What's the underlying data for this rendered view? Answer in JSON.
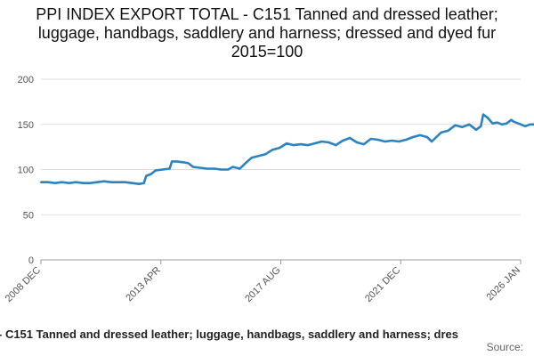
{
  "chart_data": {
    "type": "line",
    "title": "PPI INDEX EXPORT TOTAL - C151 Tanned and dressed leather; luggage, handbags, saddlery and harness; dressed and dyed fur 2015=100",
    "xlabel": "",
    "ylabel": "",
    "ylim": [
      0,
      200
    ],
    "yticks": [
      "0",
      "50",
      "100",
      "150",
      "200"
    ],
    "x_tick_labels": [
      "2008 DEC",
      "2013 APR",
      "2017 AUG",
      "2021 DEC",
      "2026 JAN"
    ],
    "x_range": [
      "2008-12",
      "2026-01"
    ],
    "grid": "horizontal",
    "series": [
      {
        "name": "PPI INDEX EXPORT TOTAL - C151 Tanned and dressed leather; luggage, handbags, saddlery and harness; dressed and dyed fur 2015=100",
        "color": "#2b84c0",
        "points": [
          [
            "2008-12",
            86
          ],
          [
            "2009-03",
            86
          ],
          [
            "2009-06",
            85
          ],
          [
            "2009-09",
            86
          ],
          [
            "2009-12",
            85
          ],
          [
            "2010-03",
            86
          ],
          [
            "2010-06",
            85
          ],
          [
            "2010-09",
            85
          ],
          [
            "2010-12",
            86
          ],
          [
            "2011-03",
            87
          ],
          [
            "2011-06",
            86
          ],
          [
            "2011-09",
            86
          ],
          [
            "2011-12",
            86
          ],
          [
            "2012-03",
            85
          ],
          [
            "2012-06",
            84
          ],
          [
            "2012-08",
            85
          ],
          [
            "2012-09",
            93
          ],
          [
            "2012-11",
            95
          ],
          [
            "2013-01",
            99
          ],
          [
            "2013-04",
            100
          ],
          [
            "2013-07",
            101
          ],
          [
            "2013-08",
            109
          ],
          [
            "2013-10",
            109
          ],
          [
            "2014-01",
            108
          ],
          [
            "2014-03",
            107
          ],
          [
            "2014-05",
            103
          ],
          [
            "2014-08",
            102
          ],
          [
            "2014-11",
            101
          ],
          [
            "2015-02",
            101
          ],
          [
            "2015-05",
            100
          ],
          [
            "2015-08",
            100
          ],
          [
            "2015-10",
            103
          ],
          [
            "2016-01",
            101
          ],
          [
            "2016-03",
            106
          ],
          [
            "2016-06",
            113
          ],
          [
            "2016-09",
            115
          ],
          [
            "2016-12",
            117
          ],
          [
            "2017-03",
            122
          ],
          [
            "2017-06",
            124
          ],
          [
            "2017-09",
            129
          ],
          [
            "2017-12",
            127
          ],
          [
            "2018-03",
            128
          ],
          [
            "2018-06",
            127
          ],
          [
            "2018-09",
            129
          ],
          [
            "2018-12",
            131
          ],
          [
            "2019-03",
            130
          ],
          [
            "2019-06",
            127
          ],
          [
            "2019-09",
            132
          ],
          [
            "2019-12",
            135
          ],
          [
            "2020-03",
            130
          ],
          [
            "2020-06",
            128
          ],
          [
            "2020-09",
            134
          ],
          [
            "2020-12",
            133
          ],
          [
            "2021-03",
            131
          ],
          [
            "2021-06",
            132
          ],
          [
            "2021-09",
            131
          ],
          [
            "2021-12",
            133
          ],
          [
            "2022-03",
            136
          ],
          [
            "2022-06",
            138
          ],
          [
            "2022-09",
            136
          ],
          [
            "2022-11",
            131
          ],
          [
            "2023-01",
            136
          ],
          [
            "2023-03",
            141
          ],
          [
            "2023-06",
            143
          ],
          [
            "2023-09",
            149
          ],
          [
            "2023-12",
            147
          ],
          [
            "2024-03",
            150
          ],
          [
            "2024-06",
            144
          ],
          [
            "2024-08",
            148
          ],
          [
            "2024-09",
            161
          ],
          [
            "2024-11",
            157
          ],
          [
            "2025-01",
            151
          ],
          [
            "2025-03",
            152
          ],
          [
            "2025-05",
            150
          ],
          [
            "2025-07",
            151
          ],
          [
            "2025-09",
            155
          ],
          [
            "2025-10",
            153
          ],
          [
            "2025-12",
            151
          ],
          [
            "2026-02",
            149
          ],
          [
            "2026-03",
            148
          ],
          [
            "2026-05",
            150
          ],
          [
            "2026-07",
            150
          ],
          [
            "2026-08",
            152
          ],
          [
            "2026-10",
            151
          ]
        ]
      }
    ],
    "legend_text": " - C151 Tanned and dressed leather; luggage, handbags, saddlery and harness; dres",
    "source_label": "Source:"
  }
}
